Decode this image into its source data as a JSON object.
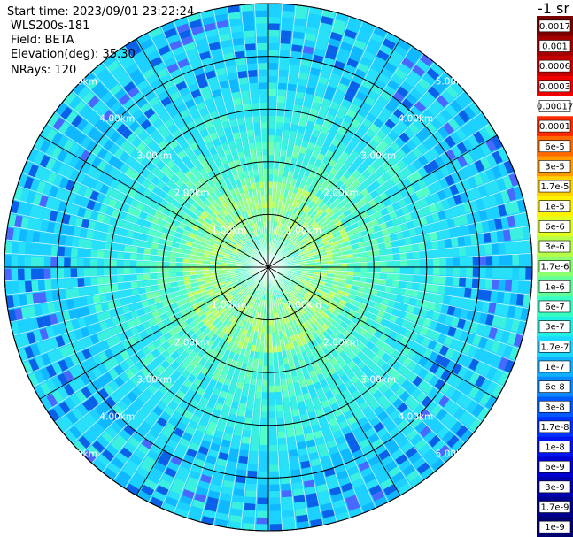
{
  "header": {
    "start_time": "Start time: 2023/09/01 23:22:24",
    "instrument": "WLS200s-181",
    "field": "Field: BETA",
    "elevation": "Elevation(deg): 35.30",
    "nrays": "NRays: 120"
  },
  "colorbar": {
    "unit_label": "-1 sr",
    "labels": [
      "0.0017",
      "0.001",
      "0.0006",
      "0.0003",
      "0.00017",
      "0.0001",
      "6e-5",
      "3e-5",
      "1.7e-5",
      "1e-5",
      "6e-6",
      "3e-6",
      "1.7e-6",
      "1e-6",
      "6e-7",
      "3e-7",
      "1.7e-7",
      "1e-7",
      "6e-8",
      "3e-8",
      "1.7e-8",
      "1e-8",
      "6e-9",
      "3e-9",
      "1.7e-9",
      "1e-9"
    ],
    "colors": [
      "#7a0000",
      "#a50000",
      "#c80000",
      "#f00000",
      "#ffffff",
      "#ff2a00",
      "#ff6a00",
      "#ff9a00",
      "#ffd200",
      "#fff200",
      "#e0ff20",
      "#b8ff48",
      "#8cff70",
      "#60ff9a",
      "#38ffc4",
      "#1ef0e4",
      "#1cd8ff",
      "#10b0ff",
      "#0a88ff",
      "#005aff",
      "#0032ff",
      "#0014f0",
      "#0000d0",
      "#0000b0",
      "#000090",
      "#000070"
    ]
  },
  "chart_data": {
    "type": "heatmap",
    "projection": "polar (PPI scan)",
    "field": "BETA",
    "nrays": 120,
    "range_rings_km": [
      1,
      2,
      3,
      4,
      5
    ],
    "ring_labels": [
      "1.00km",
      "2.00km",
      "3.00km",
      "4.00km",
      "5.00km"
    ],
    "spokes_deg": [
      0,
      30,
      60,
      90,
      120,
      150,
      180,
      210,
      240,
      270,
      300,
      330
    ],
    "max_range_km": 5.0,
    "value_profile_by_range": [
      {
        "range_km": 0.5,
        "typical": "1.7e-7"
      },
      {
        "range_km": 1.0,
        "typical": "6e-7"
      },
      {
        "range_km": 1.5,
        "typical": "1e-6"
      },
      {
        "range_km": 2.0,
        "typical": "3e-7"
      },
      {
        "range_km": 3.0,
        "typical": "1.7e-7"
      },
      {
        "range_km": 4.0,
        "typical": "1e-7"
      },
      {
        "range_km": 5.0,
        "typical": "6e-8"
      }
    ]
  }
}
